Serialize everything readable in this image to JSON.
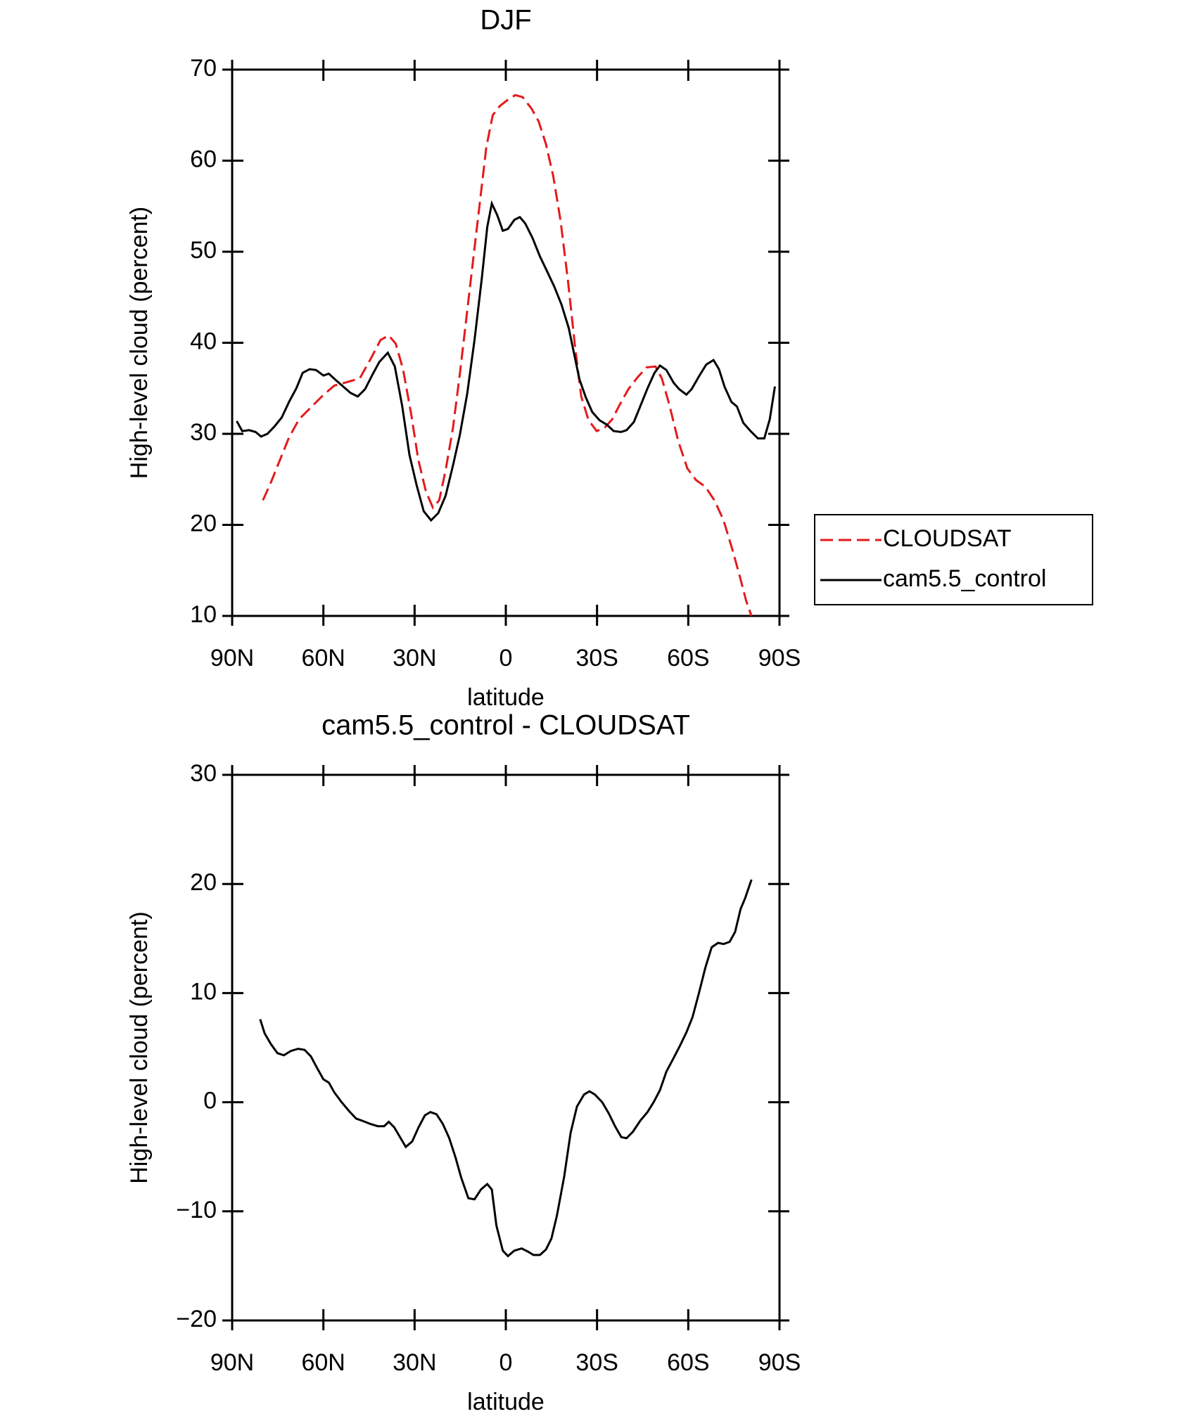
{
  "chart_data": [
    {
      "type": "line",
      "title": "DJF",
      "xlabel": "latitude",
      "ylabel": "High-level cloud (percent)",
      "xlim": [
        90,
        -90
      ],
      "xticks": [
        {
          "value": 90,
          "label": "90N"
        },
        {
          "value": 60,
          "label": "60N"
        },
        {
          "value": 30,
          "label": "30N"
        },
        0,
        {
          "value": -30,
          "label": "30S"
        },
        {
          "value": -60,
          "label": "60S"
        },
        {
          "value": -90,
          "label": "90S"
        }
      ],
      "ylim": [
        10,
        70
      ],
      "yticks": [
        10,
        20,
        30,
        40,
        50,
        60,
        70
      ],
      "legend": "right",
      "series": [
        {
          "name": "CLOUDSAT",
          "color": "#e41a1c",
          "dash": true,
          "x": [
            79.9,
            77.2,
            74.2,
            71.3,
            68.0,
            63.8,
            60.2,
            56.4,
            52.0,
            48.0,
            44.5,
            41.2,
            38.5,
            36.2,
            33.8,
            31.1,
            28.8,
            26.3,
            24.0,
            21.9,
            19.8,
            17.4,
            15.1,
            12.7,
            10.3,
            8.2,
            6.4,
            4.3,
            2.0,
            -0.7,
            -3.1,
            -5.5,
            -8.5,
            -10.8,
            -13.2,
            -15.6,
            -18.0,
            -20.4,
            -22.8,
            -24.8,
            -27.2,
            -29.9,
            -32.6,
            -35.0,
            -37.3,
            -40.3,
            -43.3,
            -46.3,
            -49.2,
            -51.3,
            -53.7,
            -56.7,
            -59.7,
            -62.6,
            -65.6,
            -68.6,
            -71.6,
            -74.5,
            -76.9,
            -79.0,
            -80.8
          ],
          "values": [
            22.7,
            24.7,
            27.2,
            29.6,
            31.6,
            33.0,
            34.2,
            35.3,
            35.7,
            36.1,
            38.2,
            40.3,
            40.8,
            39.9,
            37.1,
            32.1,
            27.2,
            23.7,
            21.9,
            22.7,
            26.0,
            30.6,
            36.6,
            43.5,
            50.4,
            56.4,
            61.5,
            65.0,
            66.0,
            66.7,
            67.2,
            67.0,
            65.7,
            64.3,
            61.8,
            58.3,
            53.4,
            46.9,
            39.5,
            34.1,
            31.5,
            30.3,
            30.7,
            31.6,
            33.1,
            34.9,
            36.2,
            37.3,
            37.4,
            36.1,
            33.3,
            29.2,
            26.2,
            24.9,
            24.2,
            22.7,
            20.5,
            17.3,
            14.4,
            11.7,
            10.0
          ]
        },
        {
          "name": "cam5.5_control",
          "color": "#000000",
          "dash": false,
          "x": [
            88.5,
            86.7,
            84.4,
            82.3,
            80.5,
            78.4,
            76.1,
            73.7,
            71.3,
            68.9,
            66.8,
            64.5,
            62.4,
            60.0,
            58.2,
            55.9,
            53.5,
            51.1,
            48.7,
            46.3,
            44.0,
            41.6,
            38.8,
            36.5,
            34.1,
            31.7,
            29.3,
            27.0,
            24.6,
            22.2,
            19.8,
            17.4,
            15.1,
            12.7,
            10.3,
            7.9,
            6.1,
            4.6,
            2.8,
            1.0,
            -0.7,
            -2.8,
            -4.6,
            -6.4,
            -8.8,
            -11.2,
            -13.5,
            -15.9,
            -18.3,
            -20.7,
            -22.5,
            -24.2,
            -26.3,
            -28.4,
            -30.8,
            -33.2,
            -35.5,
            -37.9,
            -39.7,
            -42.1,
            -44.2,
            -46.6,
            -48.9,
            -50.7,
            -52.8,
            -55.2,
            -57.0,
            -59.4,
            -61.1,
            -63.5,
            -65.9,
            -68.3,
            -70.1,
            -71.9,
            -74.2,
            -76.0,
            -78.1,
            -80.5,
            -82.9,
            -85.0,
            -86.8,
            -88.5
          ],
          "values": [
            31.4,
            30.3,
            30.4,
            30.2,
            29.7,
            30.0,
            30.8,
            31.8,
            33.5,
            35.0,
            36.7,
            37.1,
            37.0,
            36.4,
            36.6,
            35.9,
            35.2,
            34.5,
            34.1,
            34.9,
            36.4,
            37.9,
            38.9,
            37.4,
            33.1,
            27.7,
            24.3,
            21.5,
            20.5,
            21.3,
            23.2,
            26.5,
            29.9,
            34.4,
            40.3,
            47.1,
            52.7,
            55.3,
            54.0,
            52.3,
            52.5,
            53.5,
            53.8,
            53.1,
            51.5,
            49.5,
            47.9,
            46.2,
            44.2,
            41.6,
            38.7,
            36.0,
            34.0,
            32.4,
            31.5,
            31.0,
            30.3,
            30.2,
            30.4,
            31.3,
            33.0,
            35.0,
            36.7,
            37.5,
            37.0,
            35.6,
            34.9,
            34.3,
            34.9,
            36.3,
            37.6,
            38.1,
            37.1,
            35.2,
            33.5,
            33.0,
            31.2,
            30.3,
            29.5,
            29.5,
            31.6,
            35.2
          ]
        }
      ]
    },
    {
      "type": "line",
      "title": "cam5.5_control - CLOUDSAT",
      "xlabel": "latitude",
      "ylabel": "High-level cloud (percent)",
      "xlim": [
        90,
        -90
      ],
      "xticks": [
        {
          "value": 90,
          "label": "90N"
        },
        {
          "value": 60,
          "label": "60N"
        },
        {
          "value": 30,
          "label": "30N"
        },
        0,
        {
          "value": -30,
          "label": "30S"
        },
        {
          "value": -60,
          "label": "60S"
        },
        {
          "value": -90,
          "label": "90S"
        }
      ],
      "ylim": [
        -20,
        30
      ],
      "yticks": [
        {
          "value": -20,
          "label": "−20"
        },
        {
          "value": -10,
          "label": "−10"
        },
        0,
        10,
        20,
        30
      ],
      "series": [
        {
          "color": "#000000",
          "dash": false,
          "x": [
            80.8,
            79.3,
            77.2,
            75.1,
            73.0,
            70.7,
            68.3,
            66.2,
            64.1,
            62.0,
            60.0,
            58.2,
            56.4,
            54.0,
            51.6,
            49.2,
            47.2,
            44.5,
            42.1,
            40.0,
            38.5,
            36.7,
            35.0,
            32.9,
            30.8,
            28.7,
            26.6,
            24.8,
            22.8,
            20.7,
            18.6,
            16.5,
            14.7,
            12.3,
            10.3,
            8.2,
            6.1,
            4.6,
            3.1,
            1.0,
            -0.7,
            -2.8,
            -5.2,
            -7.3,
            -9.1,
            -11.2,
            -13.2,
            -15.0,
            -16.8,
            -19.2,
            -21.3,
            -23.4,
            -25.7,
            -27.5,
            -29.3,
            -31.7,
            -33.8,
            -35.9,
            -38.0,
            -39.7,
            -41.8,
            -44.2,
            -46.6,
            -48.6,
            -50.7,
            -52.8,
            -54.9,
            -57.3,
            -59.4,
            -61.4,
            -63.5,
            -65.6,
            -67.7,
            -69.8,
            -71.6,
            -73.6,
            -75.4,
            -77.2,
            -78.7,
            -80.8
          ],
          "values": [
            7.6,
            6.3,
            5.3,
            4.5,
            4.3,
            4.7,
            4.9,
            4.8,
            4.2,
            3.1,
            2.1,
            1.8,
            0.9,
            0.0,
            -0.8,
            -1.5,
            -1.7,
            -2.0,
            -2.2,
            -2.2,
            -1.8,
            -2.3,
            -3.1,
            -4.1,
            -3.6,
            -2.3,
            -1.2,
            -0.9,
            -1.1,
            -2.0,
            -3.3,
            -5.1,
            -6.9,
            -8.8,
            -8.9,
            -8.0,
            -7.5,
            -8.0,
            -11.3,
            -13.6,
            -14.1,
            -13.6,
            -13.4,
            -13.7,
            -14.0,
            -14.0,
            -13.5,
            -12.5,
            -10.4,
            -6.8,
            -2.8,
            -0.4,
            0.7,
            1.0,
            0.7,
            0.0,
            -1.0,
            -2.2,
            -3.2,
            -3.3,
            -2.7,
            -1.7,
            -0.9,
            0.0,
            1.1,
            2.8,
            3.9,
            5.2,
            6.4,
            7.8,
            10.0,
            12.3,
            14.2,
            14.6,
            14.5,
            14.7,
            15.6,
            17.7,
            18.7,
            20.4
          ]
        }
      ]
    }
  ]
}
